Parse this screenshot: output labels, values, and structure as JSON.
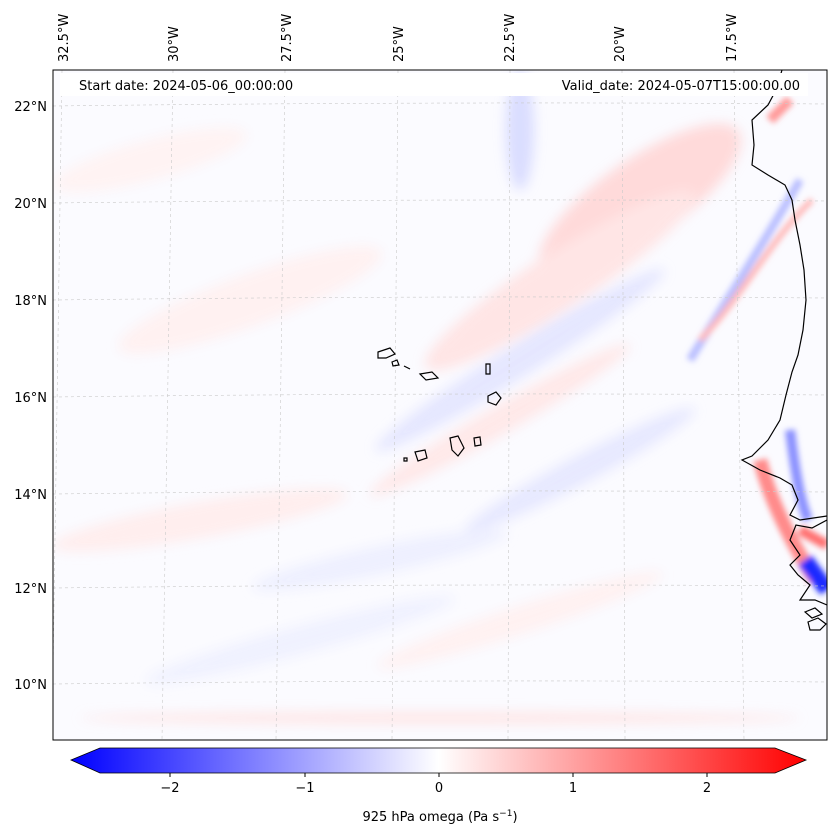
{
  "header": {
    "start_date": "Start date: 2024-05-06_00:00:00",
    "valid_date": "Valid_date: 2024-05-07T15:00:00.00"
  },
  "map": {
    "lon_labels": [
      "32.5°W",
      "30°W",
      "27.5°W",
      "25°W",
      "22.5°W",
      "20°W",
      "17.5°W"
    ],
    "lat_labels": [
      "22°N",
      "20°N",
      "18°N",
      "16°N",
      "14°N",
      "12°N",
      "10°N"
    ]
  },
  "colorbar": {
    "label_main": "925 hPa omega (Pa s",
    "label_exp": "−1",
    "label_close": ")",
    "ticks": [
      "−2",
      "−1",
      "0",
      "1",
      "2"
    ],
    "min_color": "#0000ff",
    "mid_color": "#ffffff",
    "max_color": "#ff0000"
  }
}
